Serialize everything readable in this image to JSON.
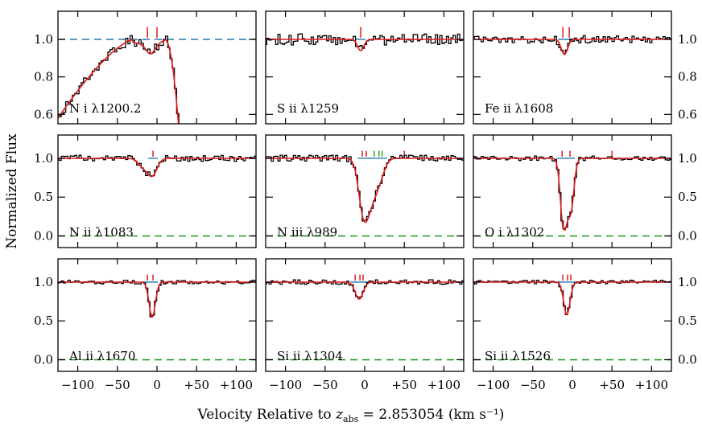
{
  "chart_data": {
    "type": "line",
    "figure": {
      "ylabel": "Normalized Flux",
      "xlabel_prefix": "Velocity Relative to ",
      "xlabel_z": "z",
      "xlabel_z_sub": "abs",
      "xlabel_suffix": " = 2.853054 (km s⁻¹)",
      "xlim": [
        -125,
        125
      ],
      "x_ticks": [
        -100,
        -50,
        0,
        50,
        100
      ],
      "x_tick_labels": [
        "−100",
        "−50",
        "0",
        "+50",
        "+100"
      ]
    },
    "panels": [
      {
        "id": "n1-1200",
        "row": 0,
        "col": 0,
        "label": "N i λ1200.2",
        "ylim": [
          0.55,
          1.15
        ],
        "yticks": [
          0.6,
          0.8,
          1.0
        ],
        "ytick_labels": [
          "0.6",
          "0.8",
          "1.0"
        ],
        "ref_line": {
          "value": 1.0,
          "color": "#1f77b4"
        },
        "profile": "n1",
        "components_red": [
          -12,
          0
        ],
        "components_green": []
      },
      {
        "id": "s2-1259",
        "row": 0,
        "col": 1,
        "label": "S ii λ1259",
        "ylim": [
          0.55,
          1.15
        ],
        "yticks": [
          0.6,
          0.8,
          1.0
        ],
        "ytick_labels": [
          "0.6",
          "0.8",
          "1.0"
        ],
        "ref_line": null,
        "profile": "s2",
        "components_red": [
          -5
        ],
        "components_green": []
      },
      {
        "id": "fe2-1608",
        "row": 0,
        "col": 2,
        "label": "Fe ii λ1608",
        "ylim": [
          0.55,
          1.15
        ],
        "yticks": [
          0.6,
          0.8,
          1.0
        ],
        "ytick_labels": [
          "0.6",
          "0.8",
          "1.0"
        ],
        "ref_line": null,
        "profile": "fe2",
        "components_red": [
          -12,
          -4
        ],
        "components_green": []
      },
      {
        "id": "n2-1083",
        "row": 1,
        "col": 0,
        "label": "N ii λ1083",
        "ylim": [
          -0.15,
          1.3
        ],
        "yticks": [
          0.0,
          0.5,
          1.0
        ],
        "ytick_labels": [
          "0.0",
          "0.5",
          "1.0"
        ],
        "ref_line": {
          "value": 0.0,
          "color": "#2ca02c"
        },
        "profile": "n2",
        "components_red": [
          -5
        ],
        "components_green": []
      },
      {
        "id": "n3-989",
        "row": 1,
        "col": 1,
        "label": "N iii λ989",
        "ylim": [
          -0.15,
          1.3
        ],
        "yticks": [
          0.0,
          0.5,
          1.0
        ],
        "ytick_labels": [
          "0.0",
          "0.5",
          "1.0"
        ],
        "ref_line": {
          "value": 0.0,
          "color": "#2ca02c"
        },
        "profile": "n3",
        "components_red": [
          -3,
          2,
          50
        ],
        "components_green": [
          12,
          18,
          22
        ]
      },
      {
        "id": "o1-1302",
        "row": 1,
        "col": 2,
        "label": "O i λ1302",
        "ylim": [
          -0.15,
          1.3
        ],
        "yticks": [
          0.0,
          0.5,
          1.0
        ],
        "ytick_labels": [
          "0.0",
          "0.5",
          "1.0"
        ],
        "ref_line": {
          "value": 0.0,
          "color": "#2ca02c"
        },
        "profile": "o1",
        "components_red": [
          -13,
          -3,
          50
        ],
        "components_green": []
      },
      {
        "id": "al2-1670",
        "row": 2,
        "col": 0,
        "label": "Al ii λ1670",
        "ylim": [
          -0.15,
          1.3
        ],
        "yticks": [
          0.0,
          0.5,
          1.0
        ],
        "ytick_labels": [
          "0.0",
          "0.5",
          "1.0"
        ],
        "ref_line": {
          "value": 0.0,
          "color": "#2ca02c"
        },
        "profile": "al2",
        "components_red": [
          -12,
          -5
        ],
        "components_green": []
      },
      {
        "id": "si2-1304",
        "row": 2,
        "col": 1,
        "label": "Si ii λ1304",
        "ylim": [
          -0.15,
          1.3
        ],
        "yticks": [
          0.0,
          0.5,
          1.0
        ],
        "ytick_labels": [
          "0.0",
          "0.5",
          "1.0"
        ],
        "ref_line": {
          "value": 0.0,
          "color": "#2ca02c"
        },
        "profile": "si2a",
        "components_red": [
          -12,
          -6,
          -2
        ],
        "components_green": []
      },
      {
        "id": "si2-1526",
        "row": 2,
        "col": 2,
        "label": "Si ii λ1526",
        "ylim": [
          -0.15,
          1.3
        ],
        "yticks": [
          0.0,
          0.5,
          1.0
        ],
        "ytick_labels": [
          "0.0",
          "0.5",
          "1.0"
        ],
        "ref_line": {
          "value": 0.0,
          "color": "#2ca02c"
        },
        "profile": "si2b",
        "components_red": [
          -12,
          -6,
          -2
        ],
        "components_green": []
      }
    ],
    "colors": {
      "data": "#000000",
      "model": "#e31a1c",
      "component_red": "#e31a1c",
      "component_green": "#2ca02c",
      "component_base": "#1f77b4"
    }
  }
}
